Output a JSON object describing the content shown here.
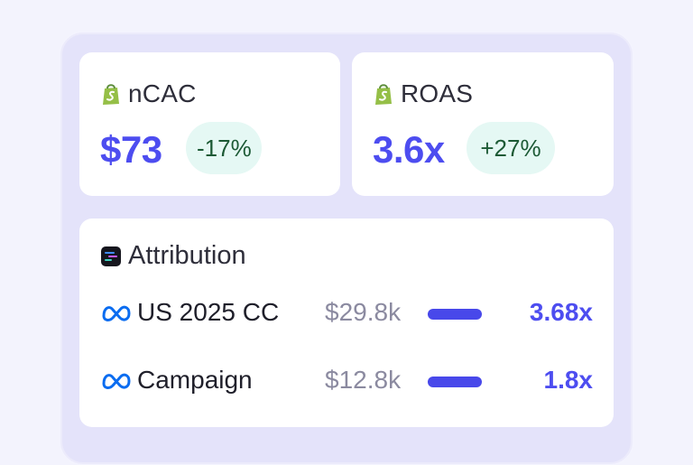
{
  "metrics": [
    {
      "label": "nCAC",
      "value": "$73",
      "change": "-17%",
      "icon": "shopify-icon"
    },
    {
      "label": "ROAS",
      "value": "3.6x",
      "change": "+27%",
      "icon": "shopify-icon"
    }
  ],
  "attribution": {
    "title": "Attribution",
    "icon": "attribution-logo-icon",
    "rows": [
      {
        "name": "US 2025 CC",
        "spend": "$29.8k",
        "roas": "3.68x",
        "bar_fraction": 1.0,
        "icon": "meta-icon"
      },
      {
        "name": "Campaign",
        "spend": "$12.8k",
        "roas": "1.8x",
        "bar_fraction": 1.0,
        "icon": "meta-icon"
      }
    ]
  },
  "colors": {
    "accent": "#4d4df0",
    "badge_bg": "#e5f8f4",
    "badge_text": "#1c5a35",
    "shopify_green": "#95bf47",
    "meta_blue": "#0a6cf0"
  }
}
